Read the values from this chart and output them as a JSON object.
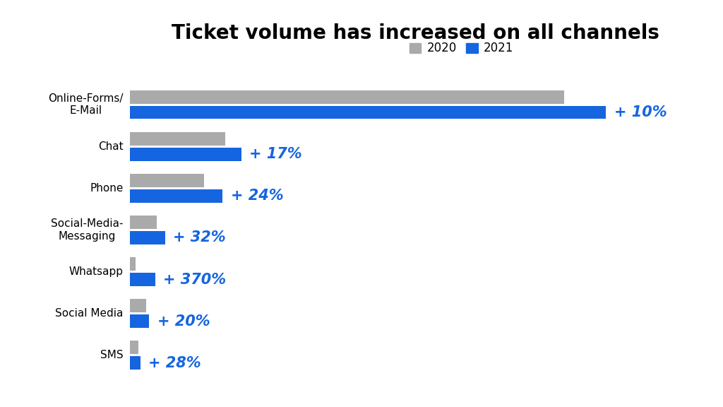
{
  "title": "Ticket volume has increased on all channels",
  "categories": [
    "Online-Forms/\nE-Mail",
    "Chat",
    "Phone",
    "Social-Media-\nMessaging",
    "Whatsapp",
    "Social Media",
    "SMS"
  ],
  "values_2020": [
    82,
    18,
    14,
    5,
    1,
    3,
    1.5
  ],
  "values_2021": [
    90,
    21,
    17.5,
    6.6,
    4.7,
    3.6,
    1.9
  ],
  "annotations_clean": [
    "+ 10%",
    "+ 17%",
    "+ 24%",
    "+ 32%",
    "+ 370%",
    "+ 20%",
    "+ 28%"
  ],
  "color_2020": "#aaaaaa",
  "color_2021": "#1565e0",
  "annotation_color": "#1565e0",
  "background_color": "#ffffff",
  "legend_labels": [
    "2020",
    "2021"
  ],
  "bar_height": 0.32,
  "title_fontsize": 20,
  "annotation_fontsize": 15,
  "label_fontsize": 11,
  "xlim": [
    0,
    108
  ]
}
